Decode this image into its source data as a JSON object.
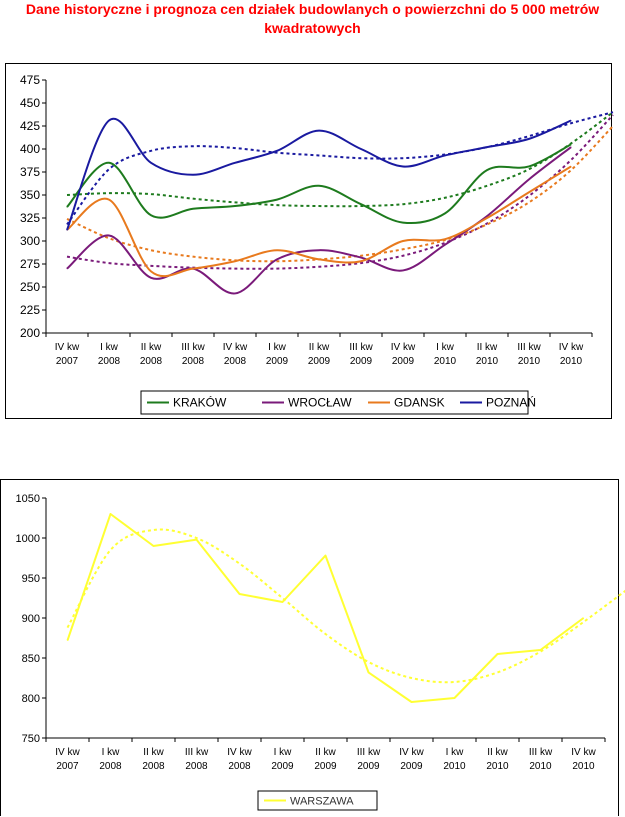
{
  "title_line1": "Dane historyczne i prognoza cen  działek budowlanych o powierzchni do 5 000 metrów",
  "title_line2": "kwadratowych",
  "chart_data": [
    {
      "type": "line",
      "categories": [
        [
          "IV kw",
          "2007"
        ],
        [
          "I kw",
          "2008"
        ],
        [
          "II kw",
          "2008"
        ],
        [
          "III kw",
          "2008"
        ],
        [
          "IV kw",
          "2008"
        ],
        [
          "I kw",
          "2009"
        ],
        [
          "II kw",
          "2009"
        ],
        [
          "III kw",
          "2009"
        ],
        [
          "IV kw",
          "2009"
        ],
        [
          "I kw",
          "2010"
        ],
        [
          "II kw",
          "2010"
        ],
        [
          "III kw",
          "2010"
        ],
        [
          "IV kw",
          "2010"
        ]
      ],
      "ylim": [
        200,
        475
      ],
      "yticks": [
        200,
        225,
        250,
        275,
        300,
        325,
        350,
        375,
        400,
        425,
        450,
        475
      ],
      "legend_position": "bottom",
      "series": [
        {
          "name": "KRAKÓW",
          "color": "#1e7b1e",
          "values": [
            337,
            385,
            328,
            335,
            338,
            345,
            360,
            340,
            320,
            330,
            377,
            381,
            405
          ]
        },
        {
          "name": "WROCŁAW",
          "color": "#7a1a7a",
          "values": [
            270,
            306,
            260,
            270,
            243,
            280,
            290,
            282,
            268,
            296,
            327,
            367,
            402
          ]
        },
        {
          "name": "GDANSK",
          "color": "#e87a1e",
          "values": [
            312,
            345,
            267,
            270,
            278,
            290,
            280,
            278,
            300,
            302,
            325,
            353,
            381
          ]
        },
        {
          "name": "POZNAŃ",
          "color": "#1a1aa0",
          "values": [
            312,
            431,
            385,
            372,
            385,
            398,
            420,
            400,
            381,
            393,
            402,
            411,
            431
          ]
        }
      ],
      "trend_series": [
        {
          "color": "#1e7b1e",
          "values": [
            350,
            352,
            351,
            346,
            342,
            339,
            338,
            338,
            340,
            347,
            360,
            378,
            406,
            440
          ]
        },
        {
          "color": "#7a1a7a",
          "values": [
            283,
            276,
            273,
            271,
            270,
            270,
            272,
            276,
            284,
            298,
            319,
            349,
            388,
            437
          ]
        },
        {
          "color": "#e87a1e",
          "values": [
            324,
            303,
            290,
            283,
            279,
            278,
            280,
            284,
            291,
            301,
            318,
            342,
            377,
            425
          ]
        },
        {
          "color": "#1a1aa0",
          "values": [
            318,
            378,
            398,
            403,
            401,
            396,
            393,
            390,
            390,
            394,
            402,
            414,
            428,
            440
          ]
        }
      ]
    },
    {
      "type": "line",
      "categories": [
        [
          "IV kw",
          "2007"
        ],
        [
          "I kw",
          "2008"
        ],
        [
          "II kw",
          "2008"
        ],
        [
          "III kw",
          "2008"
        ],
        [
          "IV kw",
          "2008"
        ],
        [
          "I kw",
          "2009"
        ],
        [
          "II kw",
          "2009"
        ],
        [
          "III kw",
          "2009"
        ],
        [
          "IV kw",
          "2009"
        ],
        [
          "I kw",
          "2010"
        ],
        [
          "II kw",
          "2010"
        ],
        [
          "III kw",
          "2010"
        ],
        [
          "IV kw",
          "2010"
        ]
      ],
      "ylim": [
        750,
        1050
      ],
      "yticks": [
        750,
        800,
        850,
        900,
        950,
        1000,
        1050
      ],
      "legend_position": "bottom",
      "series": [
        {
          "name": "WARSZAWA",
          "color": "#ffff33",
          "values": [
            872,
            1030,
            990,
            998,
            930,
            920,
            978,
            832,
            795,
            800,
            855,
            860,
            900
          ]
        }
      ],
      "trend_series": [
        {
          "color": "#ffff33",
          "values": [
            888,
            985,
            1010,
            1000,
            968,
            925,
            880,
            845,
            825,
            820,
            832,
            858,
            895,
            935
          ]
        }
      ]
    }
  ]
}
